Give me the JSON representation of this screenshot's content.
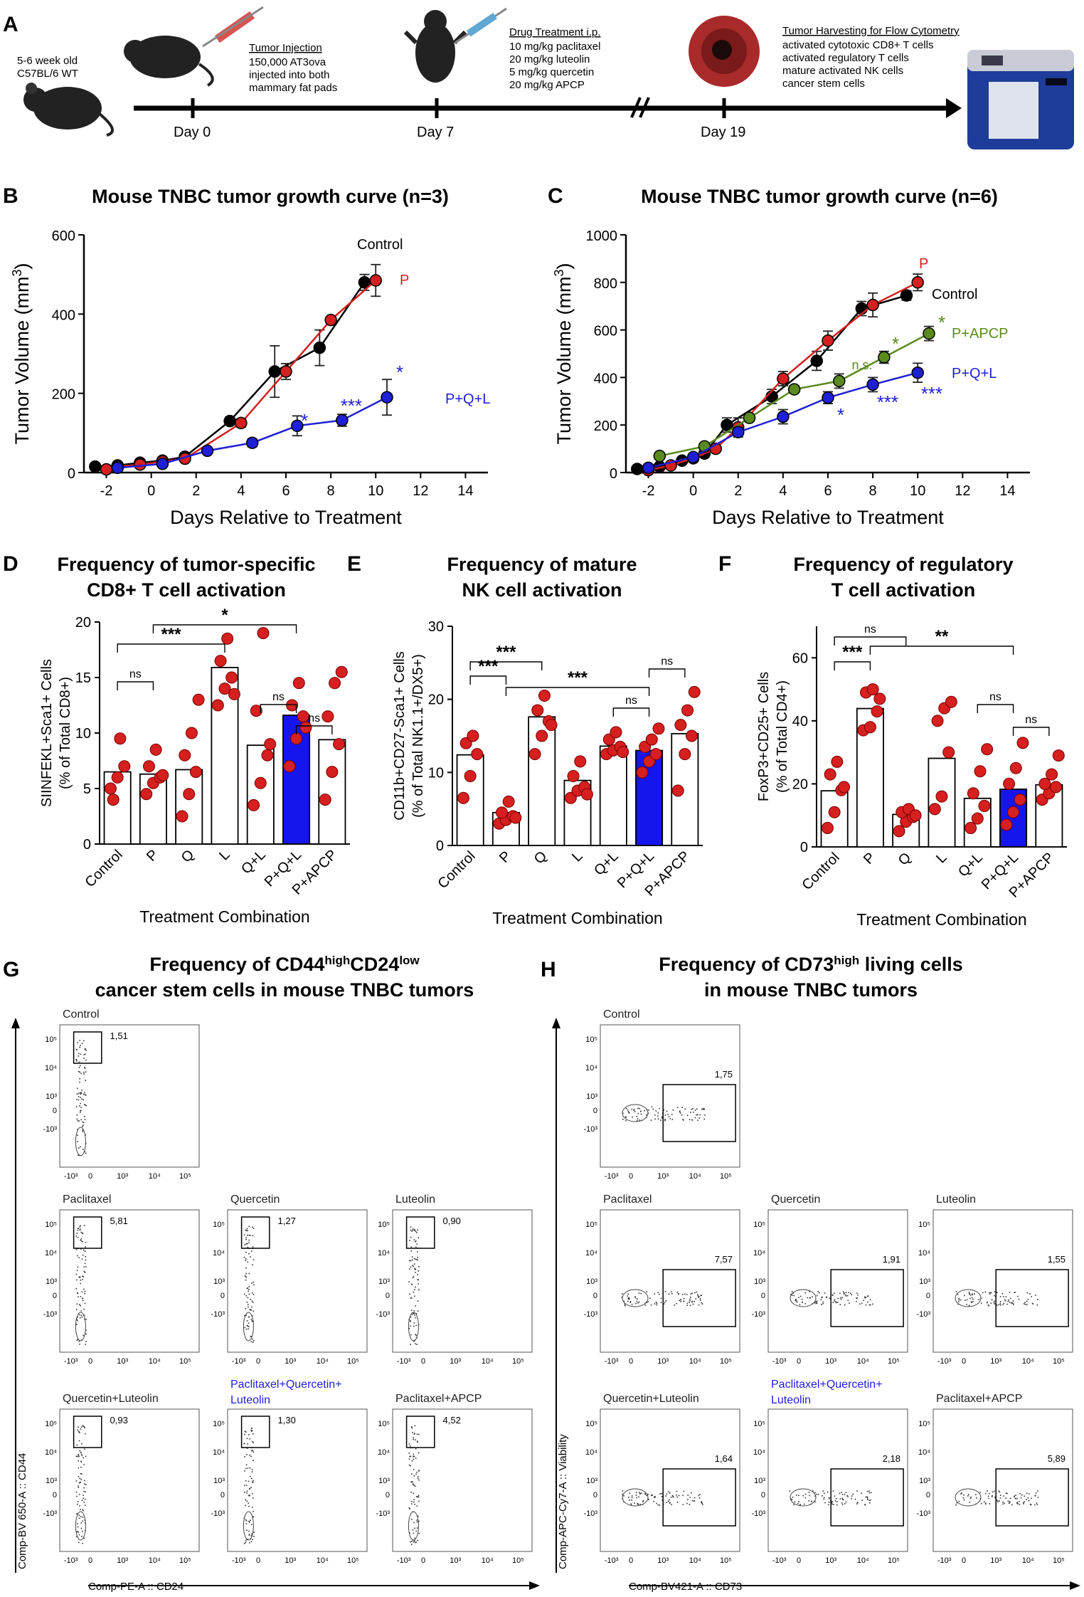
{
  "colors": {
    "control": "#000000",
    "p": "#d42020",
    "pql": "#1f1fd6",
    "papcp": "#5a8a1c",
    "bar_fill": "#ffffff",
    "bar_highlight": "#1515ee",
    "dot": "#d61f1f",
    "gate": "#000000"
  },
  "panel_a": {
    "label": "A",
    "mouse_text": [
      "5-6 week old",
      "C57BL/6 WT"
    ],
    "tumor_injection": {
      "title": "Tumor Injection",
      "lines": [
        "150,000 AT3ova",
        "injected into both",
        "mammary fat pads"
      ]
    },
    "drug_treatment": {
      "title": "Drug Treatment i.p.",
      "lines": [
        "10 mg/kg paclitaxel",
        "20 mg/kg luteolin",
        "5 mg/kg quercetin",
        "20 mg/kg APCP"
      ]
    },
    "harvest": {
      "title": "Tumor Harvesting for Flow Cytometry",
      "lines": [
        "activated cytotoxic CD8+ T cells",
        "activated regulatory T cells",
        "mature activated NK cells",
        "cancer stem cells"
      ]
    },
    "days": [
      "Day 0",
      "Day 7",
      "Day 19"
    ],
    "icons": [
      "mouse-icon",
      "syringe-icon",
      "tumor-icon",
      "flow-cytometer-icon"
    ]
  },
  "chart_data": [
    {
      "id": "B",
      "type": "line",
      "title": "Mouse TNBC tumor growth curve (n=3)",
      "xlabel": "Days Relative to Treatment",
      "ylabel": "Tumor Volume (mm3)",
      "xlim": [
        -3,
        15
      ],
      "ylim": [
        0,
        600
      ],
      "xticks": [
        -2,
        0,
        2,
        4,
        6,
        8,
        10,
        12,
        14
      ],
      "yticks": [
        0,
        200,
        400,
        600
      ],
      "series": [
        {
          "name": "Control",
          "color": "#000000",
          "x": [
            -2.5,
            -1.5,
            -0.5,
            0.5,
            1.5,
            3.5,
            5.5,
            7.5,
            9.5
          ],
          "y": [
            15,
            18,
            25,
            30,
            40,
            130,
            255,
            315,
            480
          ],
          "err": [
            0,
            0,
            0,
            0,
            0,
            10,
            65,
            45,
            20
          ]
        },
        {
          "name": "P",
          "color": "#d42020",
          "x": [
            -2,
            -1.5,
            -0.5,
            0.5,
            1.5,
            4,
            6,
            8,
            10
          ],
          "y": [
            8,
            15,
            20,
            28,
            35,
            125,
            255,
            385,
            485
          ],
          "err": [
            0,
            0,
            0,
            0,
            0,
            10,
            20,
            5,
            40
          ]
        },
        {
          "name": "P+Q+L",
          "color": "#1f1fd6",
          "x": [
            -1.5,
            0.5,
            2.5,
            4.5,
            6.5,
            8.5,
            10.5
          ],
          "y": [
            12,
            22,
            55,
            75,
            118,
            132,
            190
          ],
          "err": [
            0,
            0,
            0,
            10,
            25,
            15,
            45
          ]
        }
      ],
      "annotations": [
        {
          "text": "*",
          "color": "#1f1fd6"
        },
        {
          "text": "***",
          "color": "#1f1fd6"
        },
        {
          "text": "*",
          "color": "#1f1fd6"
        }
      ]
    },
    {
      "id": "C",
      "type": "line",
      "title": "Mouse TNBC tumor growth curve (n=6)",
      "xlabel": "Days Relative to Treatment",
      "ylabel": "Tumor Volume (mm3)",
      "xlim": [
        -3,
        15
      ],
      "ylim": [
        0,
        1000
      ],
      "xticks": [
        -2,
        0,
        2,
        4,
        6,
        8,
        10,
        12,
        14
      ],
      "yticks": [
        0,
        200,
        400,
        600,
        800,
        1000
      ],
      "series": [
        {
          "name": "Control",
          "color": "#000000",
          "x": [
            -2.5,
            -1.5,
            -0.5,
            0.5,
            1.5,
            3.5,
            5.5,
            7.5,
            9.5
          ],
          "y": [
            15,
            25,
            50,
            80,
            200,
            320,
            470,
            690,
            745
          ],
          "err": [
            0,
            0,
            0,
            10,
            30,
            30,
            40,
            30,
            20
          ]
        },
        {
          "name": "P",
          "color": "#d42020",
          "x": [
            -2,
            -1,
            0,
            1,
            2,
            4,
            6,
            8,
            10
          ],
          "y": [
            10,
            30,
            60,
            100,
            190,
            395,
            555,
            705,
            800
          ],
          "err": [
            0,
            0,
            0,
            10,
            40,
            30,
            40,
            50,
            35
          ]
        },
        {
          "name": "P+APCP",
          "color": "#5a8a1c",
          "x": [
            -1.5,
            0.5,
            2.5,
            4.5,
            6.5,
            8.5,
            10.5
          ],
          "y": [
            70,
            110,
            230,
            350,
            385,
            485,
            585
          ],
          "err": [
            0,
            0,
            10,
            15,
            30,
            25,
            30
          ]
        },
        {
          "name": "P+Q+L",
          "color": "#1f1fd6",
          "x": [
            -2,
            0,
            2,
            4,
            6,
            8,
            10
          ],
          "y": [
            20,
            65,
            170,
            235,
            315,
            370,
            420
          ],
          "err": [
            0,
            0,
            20,
            30,
            25,
            30,
            40
          ]
        }
      ],
      "annotations": [
        {
          "text": "n.s.",
          "color": "#5a8a1c"
        },
        {
          "text": "*",
          "color": "#5a8a1c"
        },
        {
          "text": "*",
          "color": "#5a8a1c"
        },
        {
          "text": "*",
          "color": "#1f1fd6"
        },
        {
          "text": "***",
          "color": "#1f1fd6"
        },
        {
          "text": "***",
          "color": "#1f1fd6"
        }
      ]
    },
    {
      "id": "D",
      "type": "bar",
      "title": [
        "Frequency of tumor-specific",
        "CD8+ T cell activation"
      ],
      "ylabel": [
        "SIINFEKL+Sca1+ Cells",
        "(% of Total CD8+)"
      ],
      "xlabel": "Treatment Combination",
      "ylim": [
        0,
        20
      ],
      "yticks": [
        0,
        5,
        10,
        15,
        20
      ],
      "categories": [
        "Control",
        "P",
        "Q",
        "L",
        "Q+L",
        "P+Q+L",
        "P+APCP"
      ],
      "values": [
        6.5,
        6.3,
        6.7,
        15.9,
        8.9,
        11.6,
        9.4
      ],
      "highlight": 5,
      "points": [
        [
          5.0,
          6.0,
          7.0,
          4.0,
          9.5
        ],
        [
          4.5,
          5.5,
          6.0,
          7.0,
          8.5,
          6.2
        ],
        [
          2.5,
          4.5,
          6.5,
          8.0,
          10.0,
          13.0
        ],
        [
          12.5,
          14.0,
          15.0,
          16.5,
          18.5,
          13.5
        ],
        [
          3.5,
          5.5,
          8.0,
          12.0,
          19.0,
          9.0
        ],
        [
          7.0,
          9.5,
          11.5,
          12.5,
          14.5,
          10.5
        ],
        [
          4.0,
          6.5,
          9.0,
          11.5,
          14.5,
          15.5
        ]
      ],
      "brackets": [
        {
          "from": 0,
          "to": 3,
          "label": "***"
        },
        {
          "from": 1,
          "to": 5,
          "label": "*"
        },
        {
          "from": 0,
          "to": 1,
          "label": "ns"
        },
        {
          "from": 4,
          "to": 5,
          "label": "ns"
        },
        {
          "from": 5,
          "to": 6,
          "label": "ns"
        }
      ]
    },
    {
      "id": "E",
      "type": "bar",
      "title": [
        "Frequency of mature",
        "NK cell activation"
      ],
      "ylabel": [
        "CD11b+CD27-Sca1+ Cells",
        "(% of Total NK1.1+/DX5+)"
      ],
      "xlabel": "Treatment Combination",
      "ylim": [
        0,
        30
      ],
      "yticks": [
        0,
        10,
        20,
        30
      ],
      "categories": [
        "Control",
        "P",
        "Q",
        "L",
        "Q+L",
        "P+Q+L",
        "P+APCP"
      ],
      "values": [
        12.4,
        4.5,
        17.6,
        8.9,
        13.6,
        13.0,
        15.3
      ],
      "highlight": 5,
      "points": [
        [
          6.5,
          9.5,
          12.5,
          14.0,
          15.0
        ],
        [
          3.0,
          3.5,
          4.0,
          4.5,
          6.0,
          3.8
        ],
        [
          12.5,
          15.0,
          17.0,
          18.5,
          20.5,
          16.5
        ],
        [
          6.5,
          7.5,
          8.0,
          9.5,
          11.5,
          7.0
        ],
        [
          12.5,
          13.0,
          13.5,
          14.5,
          15.5,
          12.8
        ],
        [
          10.0,
          11.5,
          12.5,
          13.5,
          14.5,
          16.0
        ],
        [
          7.5,
          12.5,
          15.0,
          16.5,
          18.5,
          21.0
        ]
      ],
      "brackets": [
        {
          "from": 0,
          "to": 2,
          "label": "***"
        },
        {
          "from": 0,
          "to": 1,
          "label": "***"
        },
        {
          "from": 1,
          "to": 5,
          "label": "***"
        },
        {
          "from": 4,
          "to": 5,
          "label": "ns"
        },
        {
          "from": 5,
          "to": 6,
          "label": "ns"
        }
      ]
    },
    {
      "id": "F",
      "type": "bar",
      "title": [
        "Frequency of regulatory",
        "T cell activation"
      ],
      "ylabel": [
        "FoxP3+CD25+ Cells",
        "(% of Total CD4+)"
      ],
      "xlabel": "Treatment Combination",
      "ylim": [
        0,
        70
      ],
      "yticks": [
        0,
        20,
        40,
        60
      ],
      "categories": [
        "Control",
        "P",
        "Q",
        "L",
        "Q+L",
        "P+Q+L",
        "P+APCP"
      ],
      "values": [
        17.8,
        43.9,
        10.3,
        28.1,
        15.4,
        18.3,
        19.7
      ],
      "highlight": 5,
      "points": [
        [
          6.0,
          11.0,
          18.0,
          23.0,
          27.0,
          19.0
        ],
        [
          37.0,
          38.0,
          43.0,
          49.0,
          50.0,
          47.0
        ],
        [
          5.0,
          8.0,
          9.5,
          11.0,
          12.0,
          10.0
        ],
        [
          12.0,
          16.0,
          30.0,
          40.0,
          44.0,
          46.0
        ],
        [
          6.0,
          9.0,
          13.0,
          17.0,
          24.0,
          31.0
        ],
        [
          7.0,
          11.0,
          15.0,
          20.0,
          25.0,
          33.0
        ],
        [
          15.0,
          17.0,
          19.0,
          20.0,
          23.0,
          29.0
        ]
      ],
      "brackets": [
        {
          "from": 0,
          "to": 2,
          "label": "ns"
        },
        {
          "from": 0,
          "to": 1,
          "label": "***"
        },
        {
          "from": 1,
          "to": 5,
          "label": "**"
        },
        {
          "from": 4,
          "to": 5,
          "label": "ns"
        },
        {
          "from": 5,
          "to": 6,
          "label": "ns"
        }
      ]
    }
  ],
  "panel_g": {
    "label": "G",
    "title_parts": [
      "Frequency of CD44",
      "high",
      "CD24",
      "low"
    ],
    "title_line2": "cancer stem cells in mouse TNBC tumors",
    "y_axis": "Comp-BV 650-A :: CD44",
    "x_axis": "Comp-PE-A :: CD24",
    "tick_labels": [
      "10⁵",
      "10⁴",
      "10³",
      "0",
      "-10³",
      "-10³",
      "0",
      "10³",
      "10⁴",
      "10⁵"
    ],
    "plots": [
      {
        "name": "Control",
        "value": "1,51"
      },
      {
        "name": "Paclitaxel",
        "value": "5,81"
      },
      {
        "name": "Quercetin",
        "value": "1,27"
      },
      {
        "name": "Luteolin",
        "value": "0,90"
      },
      {
        "name": "Quercetin+Luteolin",
        "value": "0,93"
      },
      {
        "name": "Paclitaxel+Quercetin+",
        "name2": "Luteolin",
        "value": "1,30",
        "highlight": true
      },
      {
        "name": "Paclitaxel+APCP",
        "value": "4,52"
      }
    ]
  },
  "panel_h": {
    "label": "H",
    "title_parts": [
      "Frequency of CD73",
      "high",
      " living cells"
    ],
    "title_line2": "in mouse TNBC tumors",
    "y_axis": "Comp-APC-Cy7-A :: Viability",
    "x_axis": "Comp-BV421-A :: CD73",
    "tick_labels": [
      "10⁵",
      "10⁴",
      "10³",
      "0",
      "-10³",
      "-10³",
      "0",
      "10³",
      "10⁴",
      "10⁵"
    ],
    "plots": [
      {
        "name": "Control",
        "value": "1,75"
      },
      {
        "name": "Paclitaxel",
        "value": "7,57"
      },
      {
        "name": "Quercetin",
        "value": "1,91"
      },
      {
        "name": "Luteolin",
        "value": "1,55"
      },
      {
        "name": "Quercetin+Luteolin",
        "value": "1,64"
      },
      {
        "name": "Paclitaxel+Quercetin+",
        "name2": "Luteolin",
        "value": "2,18",
        "highlight": true
      },
      {
        "name": "Paclitaxel+APCP",
        "value": "5,89"
      }
    ]
  }
}
